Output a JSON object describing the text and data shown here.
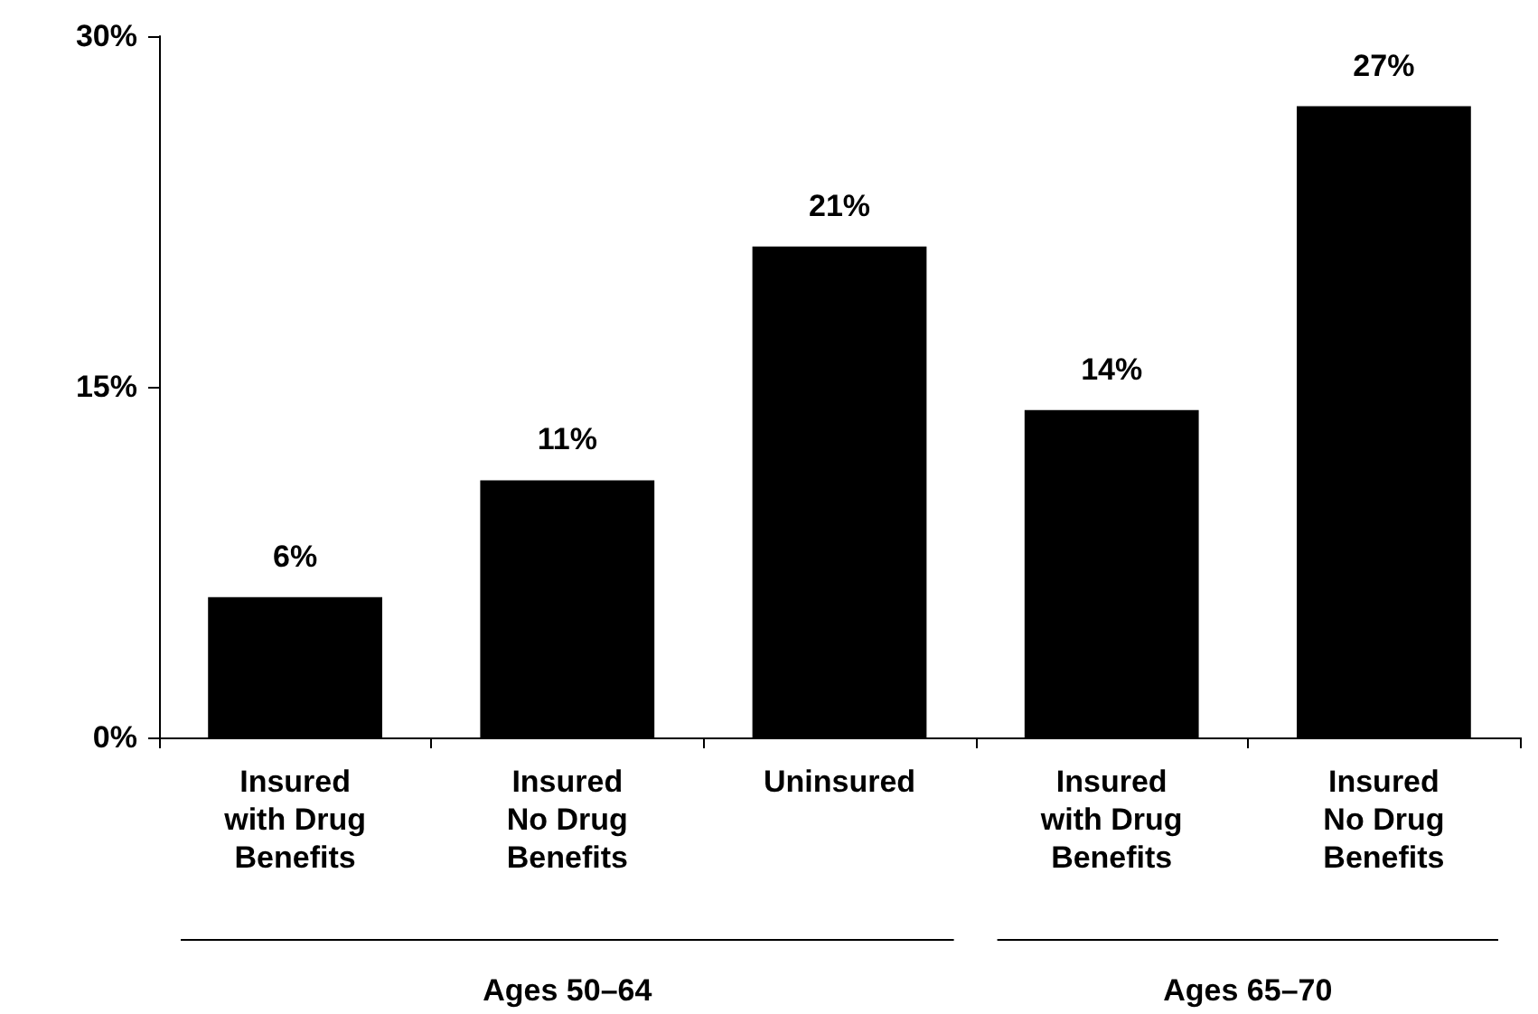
{
  "chart_data": {
    "type": "bar",
    "categories": [
      "Insured\nwith Drug\nBenefits",
      "Insured\nNo Drug\nBenefits",
      "Uninsured",
      "Insured\nwith Drug\nBenefits",
      "Insured\nNo Drug\nBenefits"
    ],
    "values": [
      6,
      11,
      21,
      14,
      27
    ],
    "value_labels": [
      "6%",
      "11%",
      "21%",
      "14%",
      "27%"
    ],
    "color": "#000000",
    "ylim": [
      0,
      30
    ],
    "yticks": [
      {
        "value": 0,
        "label": "0%"
      },
      {
        "value": 15,
        "label": "15%"
      },
      {
        "value": 30,
        "label": "30%"
      }
    ],
    "grid": false,
    "annotations": [
      "Ages 50–64",
      "Ages 65–70"
    ]
  }
}
